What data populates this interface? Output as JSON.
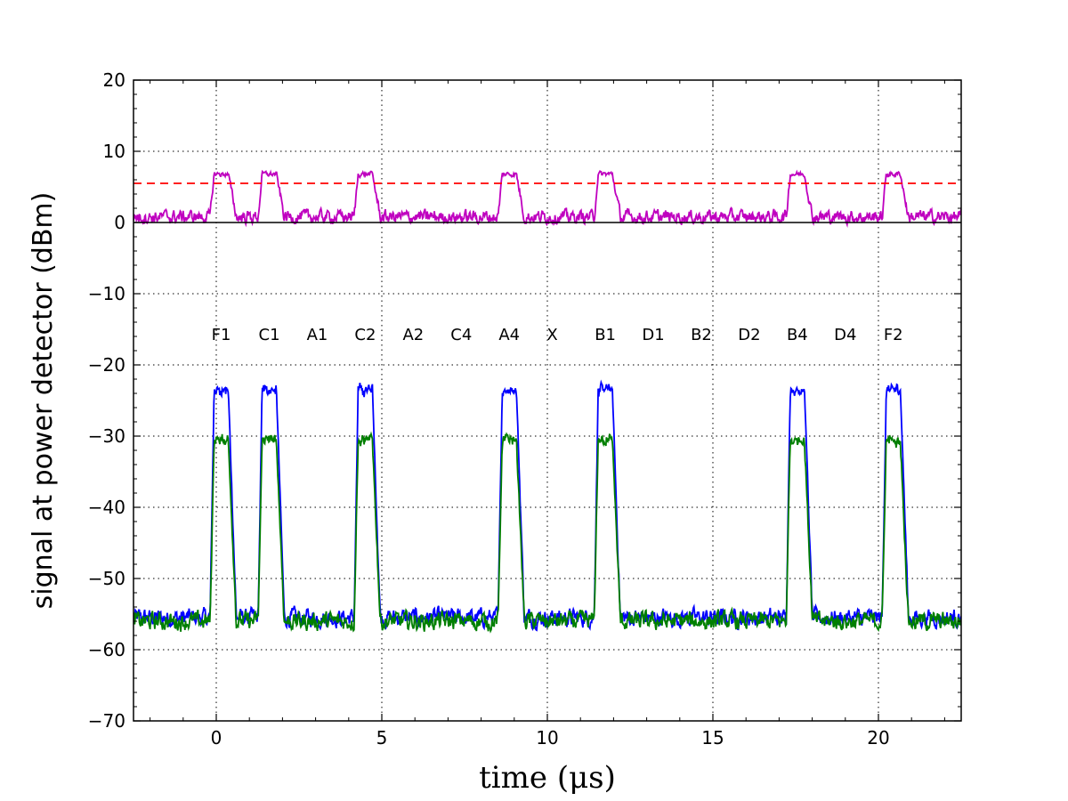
{
  "chart_data": {
    "type": "line",
    "title": "",
    "xlabel": "time (μs)",
    "ylabel": "signal at power detector (dBm)",
    "xlim": [
      -2.5,
      22.5
    ],
    "ylim": [
      -70,
      20
    ],
    "xticks": [
      0,
      5,
      10,
      15,
      20
    ],
    "xtick_labels": [
      "0",
      "5",
      "10",
      "15",
      "20"
    ],
    "yticks": [
      -70,
      -60,
      -50,
      -40,
      -30,
      -20,
      -10,
      0,
      10,
      20
    ],
    "ytick_labels": [
      "−70",
      "−60",
      "−50",
      "−40",
      "−30",
      "−20",
      "−10",
      "0",
      "10",
      "20"
    ],
    "grid": true,
    "colors": {
      "blue": "#0000ff",
      "green": "#007f00",
      "magenta": "#bf00bf",
      "threshold": "#ff0000",
      "baseline": "#000000"
    },
    "slot_label_y": -16.5,
    "slots": [
      {
        "label": "F1",
        "x": 0.15,
        "pulse": true
      },
      {
        "label": "C1",
        "x": 1.6,
        "pulse": true
      },
      {
        "label": "A1",
        "x": 3.05,
        "pulse": false
      },
      {
        "label": "C2",
        "x": 4.5,
        "pulse": true
      },
      {
        "label": "A2",
        "x": 5.95,
        "pulse": false
      },
      {
        "label": "C4",
        "x": 7.4,
        "pulse": false
      },
      {
        "label": "A4",
        "x": 8.85,
        "pulse": true
      },
      {
        "label": "X",
        "x": 10.15,
        "pulse": false
      },
      {
        "label": "B1",
        "x": 11.75,
        "pulse": true
      },
      {
        "label": "D1",
        "x": 13.2,
        "pulse": false
      },
      {
        "label": "B2",
        "x": 14.65,
        "pulse": false
      },
      {
        "label": "D2",
        "x": 16.1,
        "pulse": false
      },
      {
        "label": "B4",
        "x": 17.55,
        "pulse": true
      },
      {
        "label": "D4",
        "x": 19.0,
        "pulse": false
      },
      {
        "label": "F2",
        "x": 20.45,
        "pulse": true
      }
    ],
    "pulse_width": 0.55,
    "series": [
      {
        "color": "#0000ff",
        "baseline": -55.5,
        "peak": -23.5
      },
      {
        "color": "#007f00",
        "baseline": -56.0,
        "peak": -30.5
      },
      {
        "color": "#bf00bf",
        "baseline": 0.8,
        "peak": 6.8
      }
    ],
    "threshold_level": 5.5,
    "reference_level": 0
  }
}
